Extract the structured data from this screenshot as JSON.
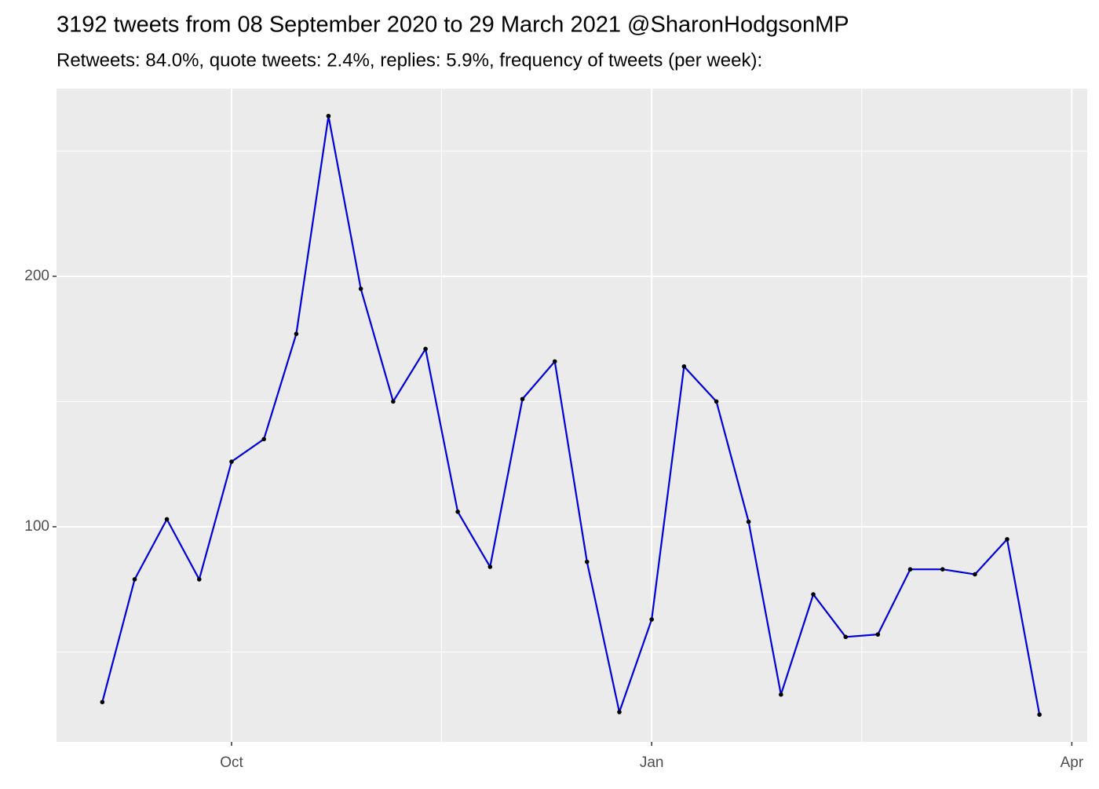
{
  "chart_data": {
    "type": "line",
    "title": "3192 tweets from 08 September 2020 to 29 March 2021 @SharonHodgsonMP",
    "subtitle": "Retweets: 84.0%, quote tweets: 2.4%, replies: 5.9%, frequency of tweets (per week):",
    "x": [
      9.077,
      9.308,
      9.538,
      9.769,
      10,
      10.231,
      10.462,
      10.692,
      10.923,
      11.154,
      11.385,
      11.615,
      11.846,
      12.077,
      12.308,
      12.538,
      12.769,
      13,
      13.231,
      13.462,
      13.692,
      13.923,
      14.154,
      14.385,
      14.615,
      14.846,
      15.077,
      15.308,
      15.538,
      15.769
    ],
    "series": [
      {
        "color": "#0000dd",
        "point_color": "#000000",
        "values": [
          30,
          79,
          103,
          79,
          126,
          135,
          177,
          264,
          195,
          150,
          171,
          106,
          84,
          151,
          166,
          86,
          26,
          63,
          164,
          150,
          102,
          33,
          73,
          56,
          57,
          83,
          83,
          81,
          95,
          25
        ]
      }
    ],
    "xlim": [
      8.75,
      16.11
    ],
    "xticks": [
      {
        "value": 10,
        "label": "Oct"
      },
      {
        "value": 13,
        "label": "Jan"
      },
      {
        "value": 16,
        "label": "Apr"
      }
    ],
    "x_minor_ticks": [
      11.5,
      14.5
    ],
    "ylim": [
      14.1,
      274.9
    ],
    "yticks": [
      100,
      200
    ],
    "y_minor_ticks": [
      50,
      150,
      250
    ],
    "grid": true
  }
}
